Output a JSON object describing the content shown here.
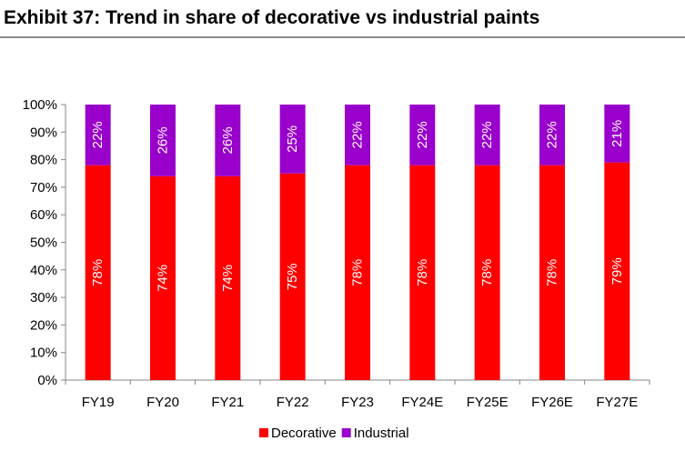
{
  "page": {
    "title": "Exhibit 37: Trend in share of decorative vs industrial paints"
  },
  "chart_data": {
    "type": "bar",
    "stacked": true,
    "title": "Exhibit 37: Trend in share of decorative vs industrial paints",
    "xlabel": "",
    "ylabel": "",
    "categories": [
      "FY19",
      "FY20",
      "FY21",
      "FY22",
      "FY23",
      "FY24E",
      "FY25E",
      "FY26E",
      "FY27E"
    ],
    "series": [
      {
        "name": "Decorative",
        "color": "#ff0000",
        "values": [
          78,
          74,
          74,
          75,
          78,
          78,
          78,
          78,
          79
        ],
        "labels": [
          "78%",
          "74%",
          "74%",
          "75%",
          "78%",
          "78%",
          "78%",
          "78%",
          "79%"
        ]
      },
      {
        "name": "Industrial",
        "color": "#9900cc",
        "values": [
          22,
          26,
          26,
          25,
          22,
          22,
          22,
          22,
          21
        ],
        "labels": [
          "22%",
          "26%",
          "26%",
          "25%",
          "22%",
          "22%",
          "22%",
          "22%",
          "21%"
        ]
      }
    ],
    "ylim": [
      0,
      100
    ],
    "yticks": [
      0,
      10,
      20,
      30,
      40,
      50,
      60,
      70,
      80,
      90,
      100
    ],
    "ytick_labels": [
      "0%",
      "10%",
      "20%",
      "30%",
      "40%",
      "50%",
      "60%",
      "70%",
      "80%",
      "90%",
      "100%"
    ],
    "grid": false,
    "legend": "bottom"
  }
}
